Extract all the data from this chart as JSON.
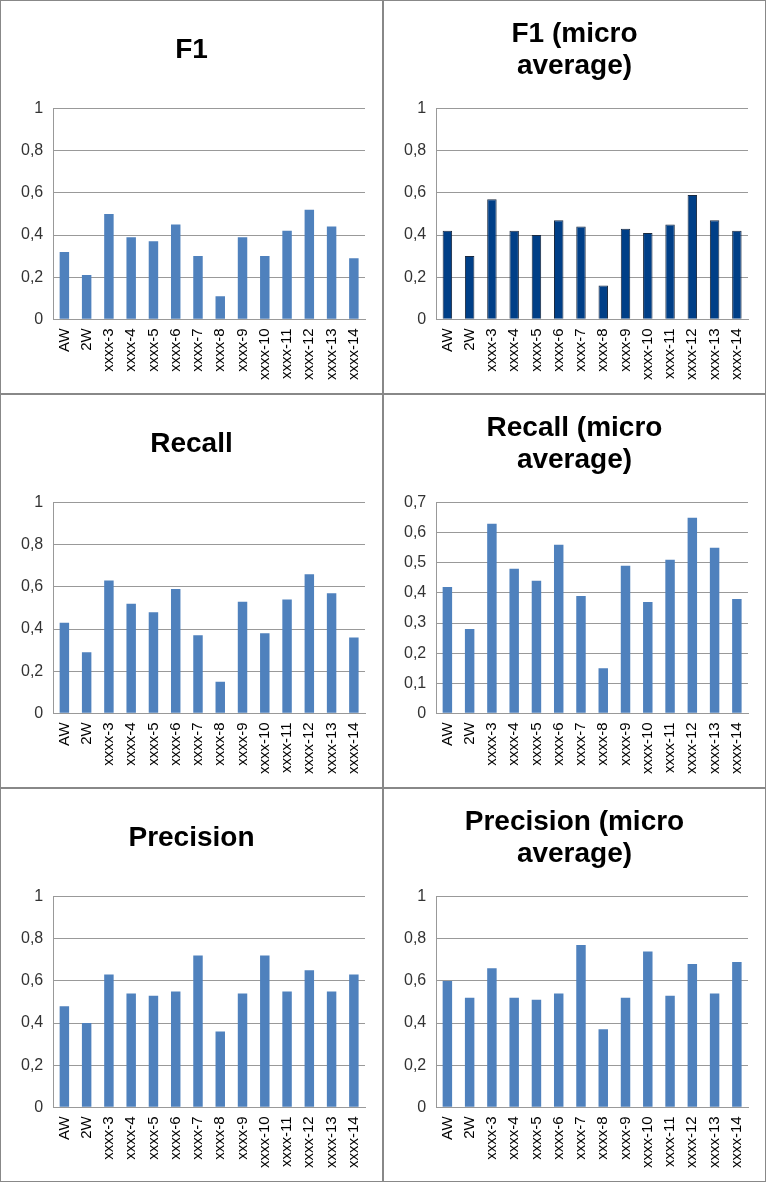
{
  "chart_data": [
    {
      "type": "bar",
      "title": "F1",
      "categories": [
        "AW",
        "2W",
        "xxxx-3",
        "xxxx-4",
        "xxxx-5",
        "xxxx-6",
        "xxxx-7",
        "xxxx-8",
        "xxxx-9",
        "xxxx-10",
        "xxxx-11",
        "xxxx-12",
        "xxxx-13",
        "xxxx-14"
      ],
      "values": [
        0.32,
        0.21,
        0.5,
        0.39,
        0.37,
        0.45,
        0.3,
        0.11,
        0.39,
        0.3,
        0.42,
        0.52,
        0.44,
        0.29
      ],
      "color": "#4f81bd",
      "ylim": [
        0,
        1
      ],
      "yticks": [
        {
          "value": 0,
          "label": "0"
        },
        {
          "value": 0.2,
          "label": "0,2"
        },
        {
          "value": 0.4,
          "label": "0,4"
        },
        {
          "value": 0.6,
          "label": "0,6"
        },
        {
          "value": 0.8,
          "label": "0,8"
        },
        {
          "value": 1,
          "label": "1"
        }
      ],
      "grid": "y",
      "legend": false
    },
    {
      "type": "bar",
      "title": "F1 (micro average)",
      "categories": [
        "AW",
        "2W",
        "xxxx-3",
        "xxxx-4",
        "xxxx-5",
        "xxxx-6",
        "xxxx-7",
        "xxxx-8",
        "xxxx-9",
        "xxxx-10",
        "xxxx-11",
        "xxxx-12",
        "xxxx-13",
        "xxxx-14"
      ],
      "values": [
        0.42,
        0.3,
        0.57,
        0.42,
        0.4,
        0.47,
        0.44,
        0.16,
        0.43,
        0.41,
        0.45,
        0.59,
        0.47,
        0.42
      ],
      "color": "#003f87",
      "ylim": [
        0,
        1
      ],
      "yticks": [
        {
          "value": 0,
          "label": "0"
        },
        {
          "value": 0.2,
          "label": "0,2"
        },
        {
          "value": 0.4,
          "label": "0,4"
        },
        {
          "value": 0.6,
          "label": "0,6"
        },
        {
          "value": 0.8,
          "label": "0,8"
        },
        {
          "value": 1,
          "label": "1"
        }
      ],
      "grid": "y",
      "legend": false
    },
    {
      "type": "bar",
      "title": "Recall",
      "categories": [
        "AW",
        "2W",
        "xxxx-3",
        "xxxx-4",
        "xxxx-5",
        "xxxx-6",
        "xxxx-7",
        "xxxx-8",
        "xxxx-9",
        "xxxx-10",
        "xxxx-11",
        "xxxx-12",
        "xxxx-13",
        "xxxx-14"
      ],
      "values": [
        0.43,
        0.29,
        0.63,
        0.52,
        0.48,
        0.59,
        0.37,
        0.15,
        0.53,
        0.38,
        0.54,
        0.66,
        0.57,
        0.36
      ],
      "color": "#4f81bd",
      "ylim": [
        0,
        1
      ],
      "yticks": [
        {
          "value": 0,
          "label": "0"
        },
        {
          "value": 0.2,
          "label": "0,2"
        },
        {
          "value": 0.4,
          "label": "0,4"
        },
        {
          "value": 0.6,
          "label": "0,6"
        },
        {
          "value": 0.8,
          "label": "0,8"
        },
        {
          "value": 1,
          "label": "1"
        }
      ],
      "grid": "y",
      "legend": false
    },
    {
      "type": "bar",
      "title": "Recall (micro average)",
      "categories": [
        "AW",
        "2W",
        "xxxx-3",
        "xxxx-4",
        "xxxx-5",
        "xxxx-6",
        "xxxx-7",
        "xxxx-8",
        "xxxx-9",
        "xxxx-10",
        "xxxx-11",
        "xxxx-12",
        "xxxx-13",
        "xxxx-14"
      ],
      "values": [
        0.42,
        0.28,
        0.63,
        0.48,
        0.44,
        0.56,
        0.39,
        0.15,
        0.49,
        0.37,
        0.51,
        0.65,
        0.55,
        0.38
      ],
      "color": "#4f81bd",
      "ylim": [
        0,
        0.7
      ],
      "yticks": [
        {
          "value": 0,
          "label": "0"
        },
        {
          "value": 0.1,
          "label": "0,1"
        },
        {
          "value": 0.2,
          "label": "0,2"
        },
        {
          "value": 0.3,
          "label": "0,3"
        },
        {
          "value": 0.4,
          "label": "0,4"
        },
        {
          "value": 0.5,
          "label": "0,5"
        },
        {
          "value": 0.6,
          "label": "0,6"
        },
        {
          "value": 0.7,
          "label": "0,7"
        }
      ],
      "grid": "y",
      "legend": false
    },
    {
      "type": "bar",
      "title": "Precision",
      "categories": [
        "AW",
        "2W",
        "xxxx-3",
        "xxxx-4",
        "xxxx-5",
        "xxxx-6",
        "xxxx-7",
        "xxxx-8",
        "xxxx-9",
        "xxxx-10",
        "xxxx-11",
        "xxxx-12",
        "xxxx-13",
        "xxxx-14"
      ],
      "values": [
        0.48,
        0.4,
        0.63,
        0.54,
        0.53,
        0.55,
        0.72,
        0.36,
        0.54,
        0.72,
        0.55,
        0.65,
        0.55,
        0.63
      ],
      "color": "#4f81bd",
      "ylim": [
        0,
        1
      ],
      "yticks": [
        {
          "value": 0,
          "label": "0"
        },
        {
          "value": 0.2,
          "label": "0,2"
        },
        {
          "value": 0.4,
          "label": "0,4"
        },
        {
          "value": 0.6,
          "label": "0,6"
        },
        {
          "value": 0.8,
          "label": "0,8"
        },
        {
          "value": 1,
          "label": "1"
        }
      ],
      "grid": "y",
      "legend": false
    },
    {
      "type": "bar",
      "title": "Precision (micro average)",
      "categories": [
        "AW",
        "2W",
        "xxxx-3",
        "xxxx-4",
        "xxxx-5",
        "xxxx-6",
        "xxxx-7",
        "xxxx-8",
        "xxxx-9",
        "xxxx-10",
        "xxxx-11",
        "xxxx-12",
        "xxxx-13",
        "xxxx-14"
      ],
      "values": [
        0.6,
        0.52,
        0.66,
        0.52,
        0.51,
        0.54,
        0.77,
        0.37,
        0.52,
        0.74,
        0.53,
        0.68,
        0.54,
        0.69
      ],
      "color": "#4f81bd",
      "ylim": [
        0,
        1
      ],
      "yticks": [
        {
          "value": 0,
          "label": "0"
        },
        {
          "value": 0.2,
          "label": "0,2"
        },
        {
          "value": 0.4,
          "label": "0,4"
        },
        {
          "value": 0.6,
          "label": "0,6"
        },
        {
          "value": 0.8,
          "label": "0,8"
        },
        {
          "value": 1,
          "label": "1"
        }
      ],
      "grid": "y",
      "legend": false
    }
  ]
}
